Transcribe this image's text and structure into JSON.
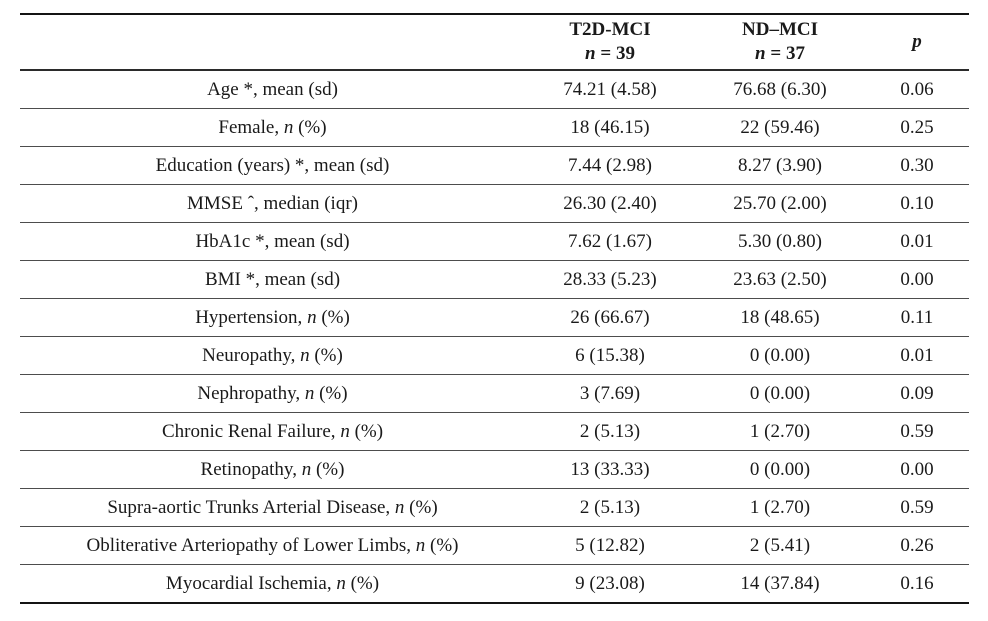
{
  "page": {
    "background_color": "#ffffff",
    "text_color": "#1a1a1a",
    "thick_rule_color": "#141414",
    "row_rule_color": "#4d4d4d"
  },
  "table": {
    "header": {
      "label_col": "",
      "t2d": {
        "line1": "T2D-MCI",
        "n_italic": "n",
        "n_rest": " = 39"
      },
      "nd": {
        "line1": "ND–MCI",
        "n_italic": "n",
        "n_rest": " = 37"
      },
      "p": "p"
    },
    "rows": [
      {
        "label": {
          "pre": "Age *, mean (sd)",
          "it": "",
          "post": ""
        },
        "t2d": "74.21 (4.58)",
        "nd": "76.68 (6.30)",
        "p": "0.06"
      },
      {
        "label": {
          "pre": "Female, ",
          "it": "n",
          "post": " (%)"
        },
        "t2d": "18 (46.15)",
        "nd": "22 (59.46)",
        "p": "0.25"
      },
      {
        "label": {
          "pre": "Education (years) *, mean (sd)",
          "it": "",
          "post": ""
        },
        "t2d": "7.44 (2.98)",
        "nd": "8.27 (3.90)",
        "p": "0.30"
      },
      {
        "label": {
          "pre": "MMSE ˆ, median (iqr)",
          "it": "",
          "post": ""
        },
        "t2d": "26.30 (2.40)",
        "nd": "25.70 (2.00)",
        "p": "0.10"
      },
      {
        "label": {
          "pre": "HbA1c *, mean (sd)",
          "it": "",
          "post": ""
        },
        "t2d": "7.62 (1.67)",
        "nd": "5.30 (0.80)",
        "p": "0.01"
      },
      {
        "label": {
          "pre": "BMI *, mean (sd)",
          "it": "",
          "post": ""
        },
        "t2d": "28.33 (5.23)",
        "nd": "23.63 (2.50)",
        "p": "0.00"
      },
      {
        "label": {
          "pre": "Hypertension, ",
          "it": "n",
          "post": " (%)"
        },
        "t2d": "26 (66.67)",
        "nd": "18 (48.65)",
        "p": "0.11"
      },
      {
        "label": {
          "pre": "Neuropathy, ",
          "it": "n",
          "post": " (%)"
        },
        "t2d": "6 (15.38)",
        "nd": "0 (0.00)",
        "p": "0.01"
      },
      {
        "label": {
          "pre": "Nephropathy, ",
          "it": "n",
          "post": " (%)"
        },
        "t2d": "3 (7.69)",
        "nd": "0 (0.00)",
        "p": "0.09"
      },
      {
        "label": {
          "pre": "Chronic Renal Failure, ",
          "it": "n",
          "post": " (%)"
        },
        "t2d": "2 (5.13)",
        "nd": "1 (2.70)",
        "p": "0.59"
      },
      {
        "label": {
          "pre": "Retinopathy, ",
          "it": "n",
          "post": " (%)"
        },
        "t2d": "13 (33.33)",
        "nd": "0 (0.00)",
        "p": "0.00"
      },
      {
        "label": {
          "pre": "Supra-aortic Trunks Arterial Disease, ",
          "it": "n",
          "post": " (%)"
        },
        "t2d": "2 (5.13)",
        "nd": "1 (2.70)",
        "p": "0.59"
      },
      {
        "label": {
          "pre": "Obliterative Arteriopathy of Lower Limbs, ",
          "it": "n",
          "post": " (%)"
        },
        "t2d": "5 (12.82)",
        "nd": "2 (5.41)",
        "p": "0.26"
      },
      {
        "label": {
          "pre": "Myocardial Ischemia, ",
          "it": "n",
          "post": " (%)"
        },
        "t2d": "9 (23.08)",
        "nd": "14 (37.84)",
        "p": "0.16"
      }
    ]
  }
}
